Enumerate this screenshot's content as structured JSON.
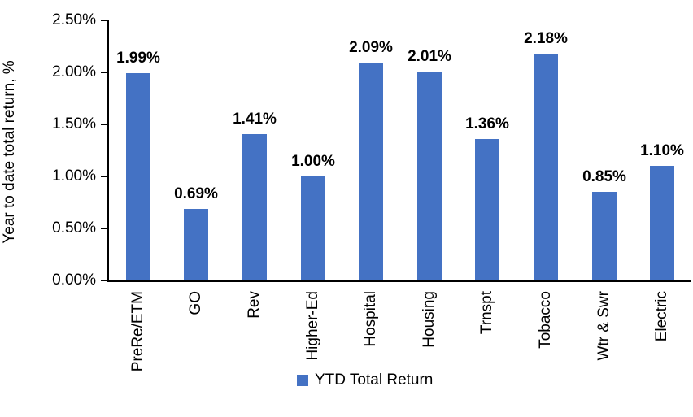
{
  "chart_data": {
    "type": "bar",
    "title": "",
    "xlabel": "",
    "ylabel": "Year to date total return, %",
    "categories": [
      "PreRe/ETM",
      "GO",
      "Rev",
      "Higher-Ed",
      "Hospital",
      "Housing",
      "Trnspt",
      "Tobacco",
      "Wtr & Swr",
      "Electric"
    ],
    "series": [
      {
        "name": "YTD Total Return",
        "values": [
          1.99,
          0.69,
          1.41,
          1.0,
          2.09,
          2.01,
          1.36,
          2.18,
          0.85,
          1.1
        ],
        "value_labels": [
          "1.99%",
          "0.69%",
          "1.41%",
          "1.00%",
          "2.09%",
          "2.01%",
          "1.36%",
          "2.18%",
          "0.85%",
          "1.10%"
        ]
      }
    ],
    "y_ticks": [
      {
        "value": 0.0,
        "label": "0.00%"
      },
      {
        "value": 0.5,
        "label": "0.50%"
      },
      {
        "value": 1.0,
        "label": "1.00%"
      },
      {
        "value": 1.5,
        "label": "1.50%"
      },
      {
        "value": 2.0,
        "label": "2.00%"
      },
      {
        "value": 2.5,
        "label": "2.50%"
      }
    ],
    "ylim": [
      0,
      2.5
    ],
    "grid": false,
    "legend": {
      "position": "bottom",
      "entries": [
        "YTD Total Return"
      ]
    },
    "colors": {
      "bar": "#4472C4",
      "axis": "#000000",
      "text": "#000000"
    }
  }
}
